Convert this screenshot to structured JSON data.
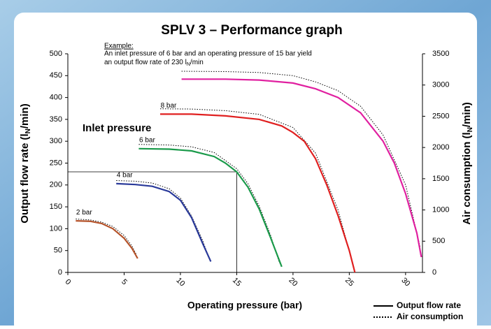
{
  "chart_data": {
    "type": "line",
    "title": "SPLV 3 – Performance graph",
    "example": [
      "Example:",
      "An inlet pressure of 6 bar and an operating pressure of 15 bar yield",
      "an output flow rate of  230 l",
      "N",
      "/min"
    ],
    "annotation": "Inlet pressure",
    "xlabel": "Operating pressure (bar)",
    "ylabel": [
      "Output flow rate (l",
      "N",
      "/min)"
    ],
    "y2label": [
      "Air consumption (l",
      "N",
      "/min)"
    ],
    "legend": [
      {
        "label": "Output flow rate",
        "style": "solid"
      },
      {
        "label": "Air consumption",
        "style": "dotted"
      }
    ],
    "xlim": [
      0,
      31.5
    ],
    "xticks": [
      0,
      5,
      10,
      15,
      20,
      25,
      30
    ],
    "ylim": [
      0,
      500
    ],
    "yticks": [
      0,
      50,
      100,
      150,
      200,
      250,
      300,
      350,
      400,
      450,
      500
    ],
    "y2lim": [
      0,
      3500
    ],
    "y2ticks": [
      0,
      500,
      1000,
      1500,
      2000,
      2500,
      3000,
      3500
    ],
    "reference": {
      "x": 15,
      "y": 230
    },
    "series": [
      {
        "name": "2 bar",
        "color": "#b5532a",
        "x": [
          0.7,
          2,
          3,
          4,
          5,
          5.7,
          6.2
        ],
        "values": [
          118,
          117,
          112,
          100,
          78,
          55,
          32
        ],
        "air_x": [
          0.7,
          2,
          3,
          4,
          5,
          5.7,
          6.1
        ],
        "air": [
          855,
          840,
          805,
          735,
          590,
          420,
          280
        ]
      },
      {
        "name": "4 bar",
        "color": "#2a3a9a",
        "x": [
          4.3,
          6,
          7.5,
          9,
          10,
          11,
          12,
          12.7
        ],
        "values": [
          203,
          201,
          197,
          185,
          165,
          125,
          65,
          25
        ],
        "air_x": [
          4.3,
          6,
          7.5,
          9,
          10,
          11,
          12,
          12.6
        ],
        "air": [
          1470,
          1460,
          1430,
          1340,
          1190,
          900,
          500,
          200
        ]
      },
      {
        "name": "6 bar",
        "color": "#1a9a4a",
        "x": [
          6.3,
          9,
          11,
          13,
          14,
          15,
          16,
          17,
          18,
          19
        ],
        "values": [
          283,
          282,
          278,
          265,
          250,
          230,
          195,
          145,
          80,
          13
        ],
        "air_x": [
          6.3,
          9,
          11,
          13,
          15,
          16,
          17,
          18,
          18.8
        ],
        "air": [
          2050,
          2040,
          2010,
          1920,
          1660,
          1420,
          1060,
          600,
          150
        ]
      },
      {
        "name": "8 bar",
        "color": "#e02020",
        "x": [
          8.2,
          11,
          14,
          17,
          19,
          20,
          21,
          22,
          23,
          24,
          25,
          25.5
        ],
        "values": [
          362,
          362,
          358,
          350,
          335,
          320,
          300,
          260,
          200,
          130,
          50,
          0
        ],
        "air_x": [
          8.2,
          11,
          14,
          17,
          20,
          22,
          24,
          25.3
        ],
        "air": [
          2620,
          2615,
          2590,
          2530,
          2320,
          1910,
          1000,
          150
        ]
      },
      {
        "color": "#e020a0",
        "x": [
          10.1,
          14,
          17,
          20,
          22,
          24,
          26,
          28,
          29,
          30,
          31,
          31.4
        ],
        "values": [
          442,
          442,
          440,
          433,
          420,
          400,
          365,
          300,
          250,
          180,
          90,
          35
        ],
        "air_x": [
          10.1,
          14,
          17,
          20,
          22,
          24,
          26,
          28,
          30,
          31.3
        ],
        "air": [
          3220,
          3215,
          3200,
          3150,
          3050,
          2910,
          2660,
          2200,
          1400,
          400
        ]
      }
    ]
  }
}
